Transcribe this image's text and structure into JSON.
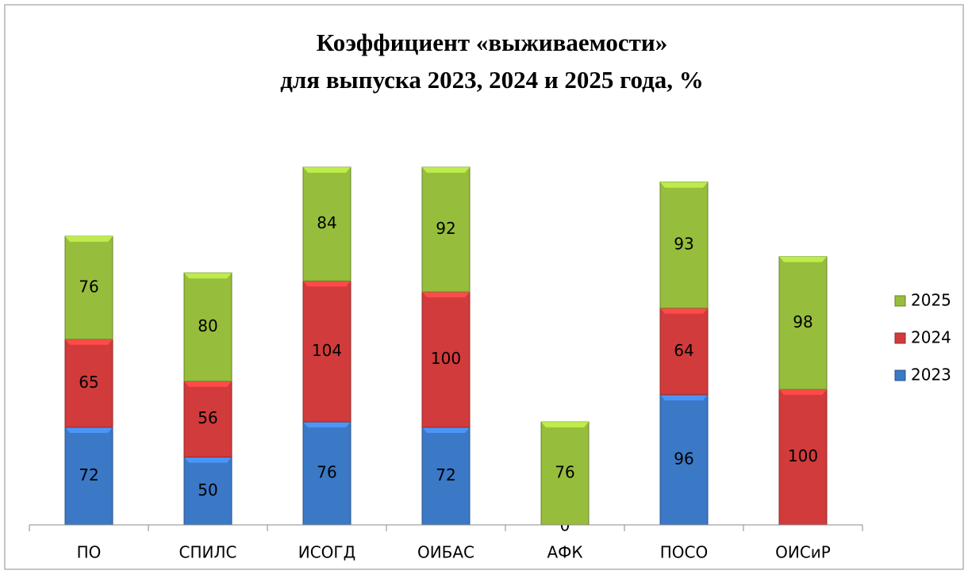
{
  "chart_data": {
    "type": "stacked_bar",
    "title": [
      "Коэффициент «выживаемости»",
      "для выпуска 2023, 2024 и 2025 года, %"
    ],
    "categories": [
      "ПО",
      "СПИЛС",
      "ИСОГД",
      "ОИБАС",
      "АФК",
      "ПОСО",
      "ОИСиР"
    ],
    "series": [
      {
        "name": "2023",
        "color": "#3b78c6",
        "values": [
          72,
          50,
          76,
          72,
          0,
          96,
          null
        ]
      },
      {
        "name": "2024",
        "color": "#d13b3b",
        "values": [
          65,
          56,
          104,
          100,
          null,
          64,
          100
        ]
      },
      {
        "name": "2025",
        "color": "#97bd3c",
        "values": [
          76,
          80,
          84,
          92,
          76,
          93,
          98
        ]
      }
    ],
    "ylim": [
      0,
      300
    ],
    "legend": "right"
  }
}
